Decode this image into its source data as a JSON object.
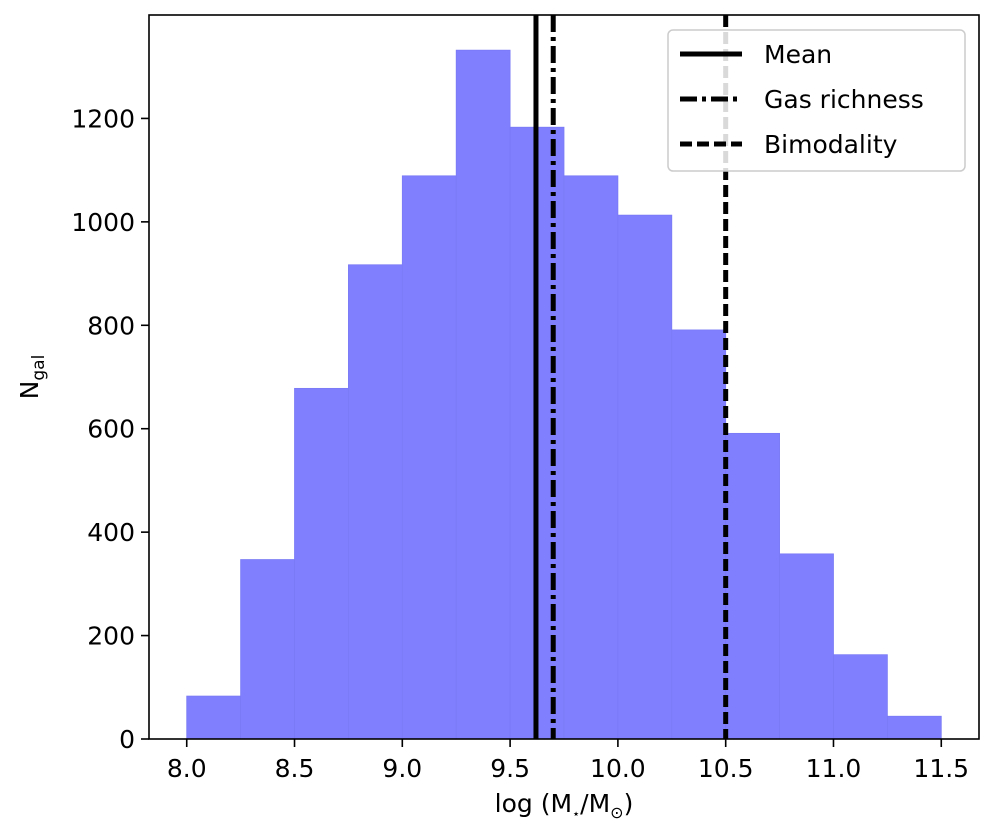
{
  "chart_data": {
    "type": "bar",
    "bin_edges": [
      8.0,
      8.25,
      8.5,
      8.75,
      9.0,
      9.25,
      9.5,
      9.75,
      10.0,
      10.25,
      10.5,
      10.75,
      11.0,
      11.25,
      11.5
    ],
    "values": [
      83,
      347,
      678,
      917,
      1089,
      1332,
      1183,
      1089,
      1013,
      791,
      591,
      358,
      163,
      44
    ],
    "bar_color": "#8080ff",
    "xlabel_parts": {
      "prefix": "log (M",
      "sub1": "⋆",
      "mid": "/M",
      "sub2": "⊙",
      "suffix": ")"
    },
    "ylabel_parts": {
      "main": "N",
      "sub": "gal"
    },
    "xlim": [
      7.825,
      11.675
    ],
    "ylim": [
      0,
      1400
    ],
    "xticks": [
      8.0,
      8.5,
      9.0,
      9.5,
      10.0,
      10.5,
      11.0,
      11.5
    ],
    "xtick_labels": [
      "8.0",
      "8.5",
      "9.0",
      "9.5",
      "10.0",
      "10.5",
      "11.0",
      "11.5"
    ],
    "yticks": [
      0,
      200,
      400,
      600,
      800,
      1000,
      1200
    ],
    "ytick_labels": [
      "0",
      "200",
      "400",
      "600",
      "800",
      "1000",
      "1200"
    ],
    "vlines": [
      {
        "name": "Mean",
        "x": 9.62,
        "style": "solid"
      },
      {
        "name": "Gas richness",
        "x": 9.7,
        "style": "dashdot"
      },
      {
        "name": "Bimodality",
        "x": 10.5,
        "style": "dashed"
      }
    ],
    "legend_position": "top-right",
    "grid": false
  }
}
